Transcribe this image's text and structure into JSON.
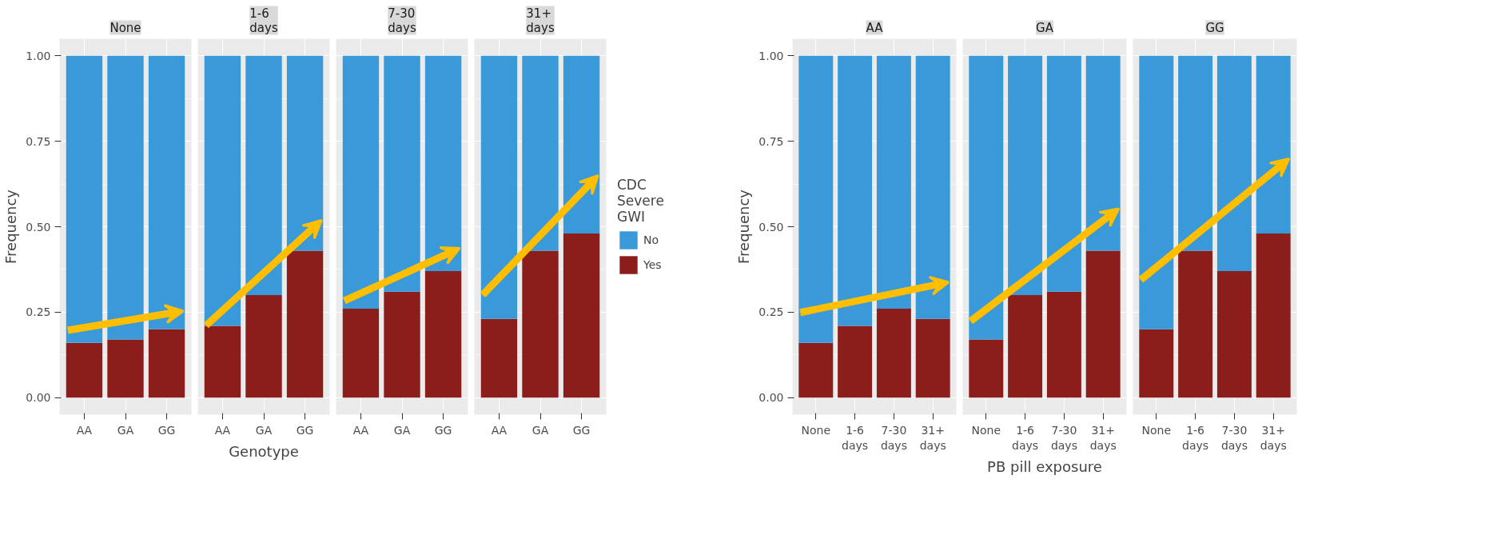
{
  "chart_data": [
    {
      "type": "bar",
      "stacked": true,
      "title": "None",
      "ylabel": "Frequency",
      "categories": [
        "AA",
        "GA",
        "GG"
      ],
      "ylim": [
        -0.05,
        1.05
      ],
      "yticks": [
        {
          "value": 0,
          "label": "0.00"
        },
        {
          "value": 0.25,
          "label": "0.25"
        },
        {
          "value": 0.5,
          "label": "0.50"
        },
        {
          "value": 0.75,
          "label": "0.75"
        },
        {
          "value": 1,
          "label": "1.00"
        }
      ],
      "grid": true,
      "series": [
        {
          "color": "#8b1e1a",
          "values": [
            0.16,
            0.17,
            0.2
          ]
        },
        {
          "color": "#3a9ad9",
          "values": [
            0.84,
            0.83,
            0.8
          ]
        }
      ]
    },
    {
      "type": "bar",
      "stacked": true,
      "title": "1-6\ndays",
      "xlabel": "Genotype",
      "categories": [
        "AA",
        "GA",
        "GG"
      ],
      "ylim": [
        -0.05,
        1.05
      ],
      "yticks": [
        0,
        0.25,
        0.5,
        0.75,
        1
      ],
      "grid": true,
      "tick_labels": "x",
      "series": [
        {
          "color": "#8b1e1a",
          "values": [
            0.21,
            0.3,
            0.43
          ]
        },
        {
          "color": "#3a9ad9",
          "values": [
            0.79,
            0.7,
            0.57
          ]
        }
      ]
    },
    {
      "type": "bar",
      "stacked": true,
      "title": "7-30\ndays",
      "categories": [
        "AA",
        "GA",
        "GG"
      ],
      "ylim": [
        -0.05,
        1.05
      ],
      "yticks": [
        0,
        0.25,
        0.5,
        0.75,
        1
      ],
      "grid": true,
      "tick_labels": "x",
      "series": [
        {
          "color": "#8b1e1a",
          "values": [
            0.26,
            0.31,
            0.37
          ]
        },
        {
          "color": "#3a9ad9",
          "values": [
            0.74,
            0.69,
            0.63
          ]
        }
      ]
    },
    {
      "type": "bar",
      "stacked": true,
      "title": "31+\ndays",
      "categories": [
        "AA",
        "GA",
        "GG"
      ],
      "ylim": [
        -0.05,
        1.05
      ],
      "yticks": [
        0,
        0.25,
        0.5,
        0.75,
        1
      ],
      "grid": true,
      "tick_labels": "x",
      "legend": "right",
      "legend_title": "CDC\nSevere\nGWI",
      "series": [
        {
          "name": "Yes",
          "color": "#8b1e1a",
          "values": [
            0.23,
            0.43,
            0.48
          ]
        },
        {
          "name": "No",
          "color": "#3a9ad9",
          "values": [
            0.77,
            0.57,
            0.52
          ]
        }
      ]
    },
    {
      "type": "bar",
      "stacked": true,
      "title": "AA",
      "ylabel": "Frequency",
      "categories": [
        "None",
        "1-6\ndays",
        "7-30\ndays",
        "31+\ndays"
      ],
      "ylim": [
        -0.05,
        1.05
      ],
      "yticks": [
        {
          "value": 0,
          "label": "0.00"
        },
        {
          "value": 0.25,
          "label": "0.25"
        },
        {
          "value": 0.5,
          "label": "0.50"
        },
        {
          "value": 0.75,
          "label": "0.75"
        },
        {
          "value": 1,
          "label": "1.00"
        }
      ],
      "grid": true,
      "series": [
        {
          "color": "#8b1e1a",
          "values": [
            0.16,
            0.21,
            0.26,
            0.23
          ]
        },
        {
          "color": "#3a9ad9",
          "values": [
            0.84,
            0.79,
            0.74,
            0.77
          ]
        }
      ]
    },
    {
      "type": "bar",
      "stacked": true,
      "title": "GA",
      "xlabel": "PB pill exposure",
      "categories": [
        "None",
        "1-6\ndays",
        "7-30\ndays",
        "31+\ndays"
      ],
      "ylim": [
        -0.05,
        1.05
      ],
      "yticks": [
        0,
        0.25,
        0.5,
        0.75,
        1
      ],
      "grid": true,
      "tick_labels": "x",
      "series": [
        {
          "color": "#8b1e1a",
          "values": [
            0.17,
            0.3,
            0.31,
            0.43
          ]
        },
        {
          "color": "#3a9ad9",
          "values": [
            0.83,
            0.7,
            0.69,
            0.57
          ]
        }
      ]
    },
    {
      "type": "bar",
      "stacked": true,
      "title": "GG",
      "categories": [
        "None",
        "1-6\ndays",
        "7-30\ndays",
        "31+\ndays"
      ],
      "ylim": [
        -0.05,
        1.05
      ],
      "yticks": [
        0,
        0.25,
        0.5,
        0.75,
        1
      ],
      "grid": true,
      "tick_labels": "x",
      "series": [
        {
          "color": "#8b1e1a",
          "values": [
            0.2,
            0.43,
            0.37,
            0.48
          ]
        },
        {
          "color": "#3a9ad9",
          "values": [
            0.8,
            0.57,
            0.63,
            0.52
          ]
        }
      ]
    }
  ]
}
